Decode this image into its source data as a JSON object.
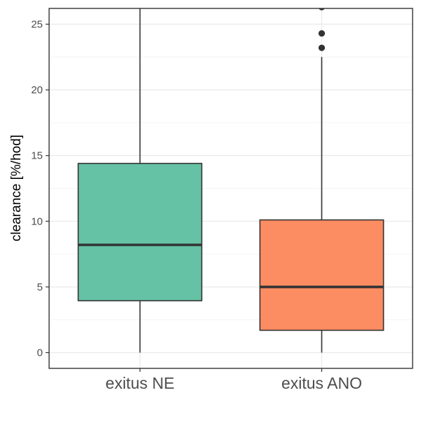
{
  "chart_data": {
    "type": "boxplot",
    "title": "",
    "xlabel": "",
    "ylabel": "clearance [%/hod]",
    "ylim": [
      -1.2,
      26.2
    ],
    "yticks": [
      0,
      5,
      10,
      15,
      20,
      25
    ],
    "grid": true,
    "categories": [
      "exitus NE",
      "exitus ANO"
    ],
    "boxes": [
      {
        "category": "exitus NE",
        "whisker_low": 0.0,
        "q1": 3.95,
        "median": 8.2,
        "q3": 14.4,
        "whisker_high": 26.2,
        "outliers": [],
        "fill": "#66c2a5"
      },
      {
        "category": "exitus ANO",
        "whisker_low": 0.0,
        "q1": 1.7,
        "median": 5.0,
        "q3": 10.1,
        "whisker_high": 22.5,
        "outliers": [
          23.2,
          24.3,
          26.3
        ],
        "fill": "#fc8d62"
      }
    ]
  },
  "colors": {
    "panel_border": "#333333",
    "grid_major": "#ebebeb",
    "grid_minor": "#f4f4f4",
    "box_line": "#333333",
    "outlier": "#333333"
  }
}
